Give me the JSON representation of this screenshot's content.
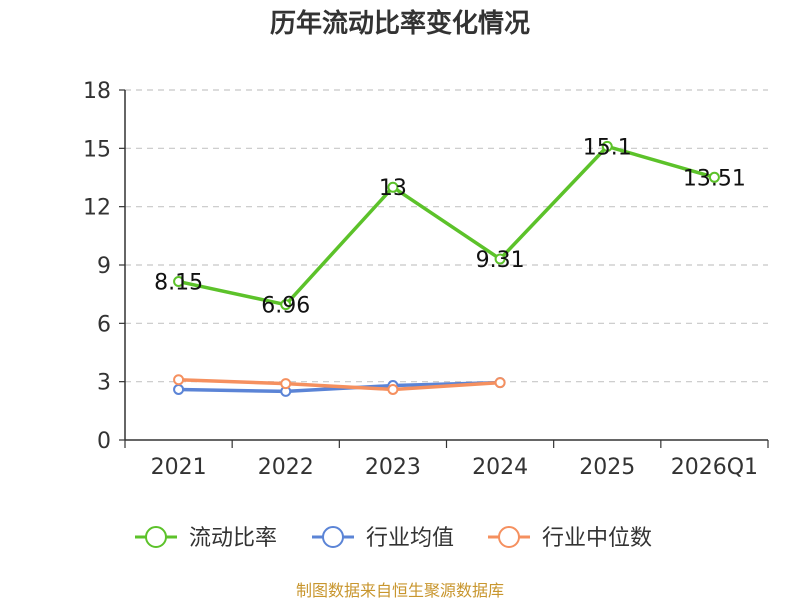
{
  "chart_data": {
    "type": "line",
    "title": "历年流动比率变化情况",
    "categories": [
      "2021",
      "2022",
      "2023",
      "2024",
      "2025",
      "2026Q1"
    ],
    "ylim": [
      0,
      18
    ],
    "yticks": [
      0,
      3,
      6,
      9,
      12,
      15,
      18
    ],
    "grid": true,
    "legend_position": "bottom",
    "series": [
      {
        "name": "流动比率",
        "color": "#5cc22a",
        "values": [
          8.15,
          6.96,
          13,
          9.31,
          15.1,
          13.51
        ],
        "labels": [
          "8.15",
          "6.96",
          "13",
          "9.31",
          "15.1",
          "13.51"
        ]
      },
      {
        "name": "行业均值",
        "color": "#5b84d6",
        "values": [
          2.6,
          2.5,
          2.8,
          2.95,
          null,
          null
        ]
      },
      {
        "name": "行业中位数",
        "color": "#f5905f",
        "values": [
          3.1,
          2.9,
          2.6,
          2.95,
          null,
          null
        ]
      }
    ]
  },
  "source": "制图数据来自恒生聚源数据库"
}
